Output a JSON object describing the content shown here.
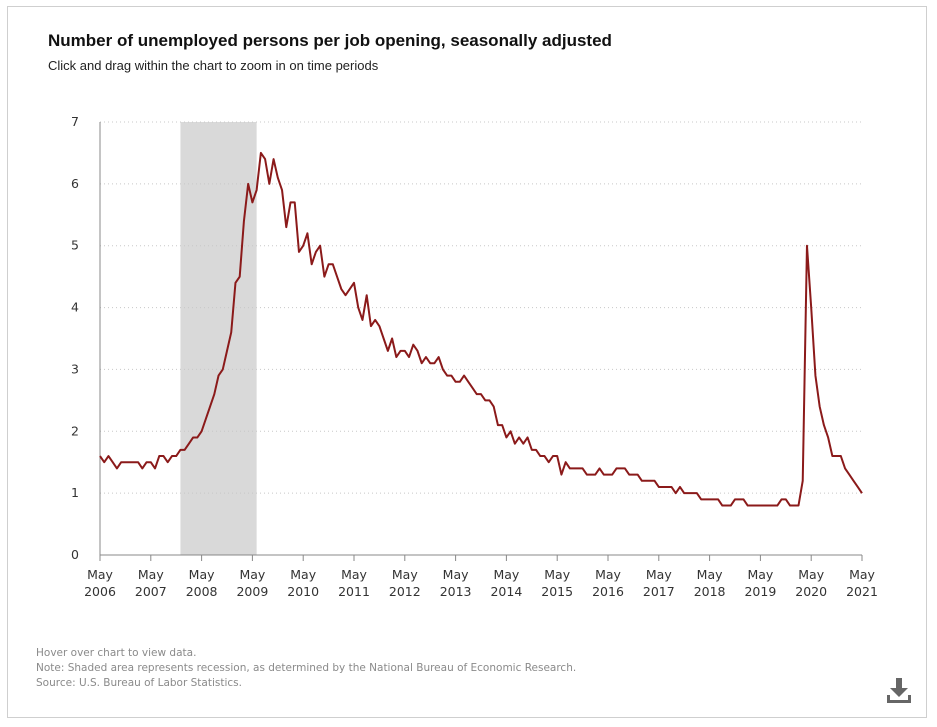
{
  "header": {
    "title": "Number of unemployed persons per job opening, seasonally adjusted",
    "subtitle": "Click and drag within the chart to zoom in on time periods"
  },
  "footer": {
    "hover_note": "Hover over chart to view data.",
    "note": "Note: Shaded area represents recession, as determined by the National Bureau of Economic Research.",
    "source": "Source: U.S. Bureau of Labor Statistics."
  },
  "toolbar": {
    "download_icon": "download-icon"
  },
  "colors": {
    "line": "#8b1a1a",
    "recession": "#d9d9d9",
    "grid": "#c8c8c8",
    "axis": "#888888"
  },
  "chart_data": {
    "type": "line",
    "title": "Number of unemployed persons per job opening, seasonally adjusted",
    "ylim": [
      0,
      7
    ],
    "yticks": [
      0,
      1,
      2,
      3,
      4,
      5,
      6,
      7
    ],
    "xlim": [
      "2006-05",
      "2021-05"
    ],
    "xticks": [
      {
        "date": "2006-05",
        "line1": "May",
        "line2": "2006"
      },
      {
        "date": "2007-05",
        "line1": "May",
        "line2": "2007"
      },
      {
        "date": "2008-05",
        "line1": "May",
        "line2": "2008"
      },
      {
        "date": "2009-05",
        "line1": "May",
        "line2": "2009"
      },
      {
        "date": "2010-05",
        "line1": "May",
        "line2": "2010"
      },
      {
        "date": "2011-05",
        "line1": "May",
        "line2": "2011"
      },
      {
        "date": "2012-05",
        "line1": "May",
        "line2": "2012"
      },
      {
        "date": "2013-05",
        "line1": "May",
        "line2": "2013"
      },
      {
        "date": "2014-05",
        "line1": "May",
        "line2": "2014"
      },
      {
        "date": "2015-05",
        "line1": "May",
        "line2": "2015"
      },
      {
        "date": "2016-05",
        "line1": "May",
        "line2": "2016"
      },
      {
        "date": "2017-05",
        "line1": "May",
        "line2": "2017"
      },
      {
        "date": "2018-05",
        "line1": "May",
        "line2": "2018"
      },
      {
        "date": "2019-05",
        "line1": "May",
        "line2": "2019"
      },
      {
        "date": "2020-05",
        "line1": "May",
        "line2": "2020"
      },
      {
        "date": "2021-05",
        "line1": "May",
        "line2": "2021"
      }
    ],
    "grid": "horizontal dotted",
    "recession": {
      "start": "2007-12",
      "end": "2009-06"
    },
    "series": [
      {
        "values": [
          {
            "x": "2006-05",
            "y": 1.6
          },
          {
            "x": "2006-06",
            "y": 1.5
          },
          {
            "x": "2006-07",
            "y": 1.6
          },
          {
            "x": "2006-08",
            "y": 1.5
          },
          {
            "x": "2006-09",
            "y": 1.4
          },
          {
            "x": "2006-10",
            "y": 1.5
          },
          {
            "x": "2006-11",
            "y": 1.5
          },
          {
            "x": "2006-12",
            "y": 1.5
          },
          {
            "x": "2007-01",
            "y": 1.5
          },
          {
            "x": "2007-02",
            "y": 1.5
          },
          {
            "x": "2007-03",
            "y": 1.4
          },
          {
            "x": "2007-04",
            "y": 1.5
          },
          {
            "x": "2007-05",
            "y": 1.5
          },
          {
            "x": "2007-06",
            "y": 1.4
          },
          {
            "x": "2007-07",
            "y": 1.6
          },
          {
            "x": "2007-08",
            "y": 1.6
          },
          {
            "x": "2007-09",
            "y": 1.5
          },
          {
            "x": "2007-10",
            "y": 1.6
          },
          {
            "x": "2007-11",
            "y": 1.6
          },
          {
            "x": "2007-12",
            "y": 1.7
          },
          {
            "x": "2008-01",
            "y": 1.7
          },
          {
            "x": "2008-02",
            "y": 1.8
          },
          {
            "x": "2008-03",
            "y": 1.9
          },
          {
            "x": "2008-04",
            "y": 1.9
          },
          {
            "x": "2008-05",
            "y": 2.0
          },
          {
            "x": "2008-06",
            "y": 2.2
          },
          {
            "x": "2008-07",
            "y": 2.4
          },
          {
            "x": "2008-08",
            "y": 2.6
          },
          {
            "x": "2008-09",
            "y": 2.9
          },
          {
            "x": "2008-10",
            "y": 3.0
          },
          {
            "x": "2008-11",
            "y": 3.3
          },
          {
            "x": "2008-12",
            "y": 3.6
          },
          {
            "x": "2009-01",
            "y": 4.4
          },
          {
            "x": "2009-02",
            "y": 4.5
          },
          {
            "x": "2009-03",
            "y": 5.4
          },
          {
            "x": "2009-04",
            "y": 6.0
          },
          {
            "x": "2009-05",
            "y": 5.7
          },
          {
            "x": "2009-06",
            "y": 5.9
          },
          {
            "x": "2009-07",
            "y": 6.5
          },
          {
            "x": "2009-08",
            "y": 6.4
          },
          {
            "x": "2009-09",
            "y": 6.0
          },
          {
            "x": "2009-10",
            "y": 6.4
          },
          {
            "x": "2009-11",
            "y": 6.1
          },
          {
            "x": "2009-12",
            "y": 5.9
          },
          {
            "x": "2010-01",
            "y": 5.3
          },
          {
            "x": "2010-02",
            "y": 5.7
          },
          {
            "x": "2010-03",
            "y": 5.7
          },
          {
            "x": "2010-04",
            "y": 4.9
          },
          {
            "x": "2010-05",
            "y": 5.0
          },
          {
            "x": "2010-06",
            "y": 5.2
          },
          {
            "x": "2010-07",
            "y": 4.7
          },
          {
            "x": "2010-08",
            "y": 4.9
          },
          {
            "x": "2010-09",
            "y": 5.0
          },
          {
            "x": "2010-10",
            "y": 4.5
          },
          {
            "x": "2010-11",
            "y": 4.7
          },
          {
            "x": "2010-12",
            "y": 4.7
          },
          {
            "x": "2011-01",
            "y": 4.5
          },
          {
            "x": "2011-02",
            "y": 4.3
          },
          {
            "x": "2011-03",
            "y": 4.2
          },
          {
            "x": "2011-04",
            "y": 4.3
          },
          {
            "x": "2011-05",
            "y": 4.4
          },
          {
            "x": "2011-06",
            "y": 4.0
          },
          {
            "x": "2011-07",
            "y": 3.8
          },
          {
            "x": "2011-08",
            "y": 4.2
          },
          {
            "x": "2011-09",
            "y": 3.7
          },
          {
            "x": "2011-10",
            "y": 3.8
          },
          {
            "x": "2011-11",
            "y": 3.7
          },
          {
            "x": "2011-12",
            "y": 3.5
          },
          {
            "x": "2012-01",
            "y": 3.3
          },
          {
            "x": "2012-02",
            "y": 3.5
          },
          {
            "x": "2012-03",
            "y": 3.2
          },
          {
            "x": "2012-04",
            "y": 3.3
          },
          {
            "x": "2012-05",
            "y": 3.3
          },
          {
            "x": "2012-06",
            "y": 3.2
          },
          {
            "x": "2012-07",
            "y": 3.4
          },
          {
            "x": "2012-08",
            "y": 3.3
          },
          {
            "x": "2012-09",
            "y": 3.1
          },
          {
            "x": "2012-10",
            "y": 3.2
          },
          {
            "x": "2012-11",
            "y": 3.1
          },
          {
            "x": "2012-12",
            "y": 3.1
          },
          {
            "x": "2013-01",
            "y": 3.2
          },
          {
            "x": "2013-02",
            "y": 3.0
          },
          {
            "x": "2013-03",
            "y": 2.9
          },
          {
            "x": "2013-04",
            "y": 2.9
          },
          {
            "x": "2013-05",
            "y": 2.8
          },
          {
            "x": "2013-06",
            "y": 2.8
          },
          {
            "x": "2013-07",
            "y": 2.9
          },
          {
            "x": "2013-08",
            "y": 2.8
          },
          {
            "x": "2013-09",
            "y": 2.7
          },
          {
            "x": "2013-10",
            "y": 2.6
          },
          {
            "x": "2013-11",
            "y": 2.6
          },
          {
            "x": "2013-12",
            "y": 2.5
          },
          {
            "x": "2014-01",
            "y": 2.5
          },
          {
            "x": "2014-02",
            "y": 2.4
          },
          {
            "x": "2014-03",
            "y": 2.1
          },
          {
            "x": "2014-04",
            "y": 2.1
          },
          {
            "x": "2014-05",
            "y": 1.9
          },
          {
            "x": "2014-06",
            "y": 2.0
          },
          {
            "x": "2014-07",
            "y": 1.8
          },
          {
            "x": "2014-08",
            "y": 1.9
          },
          {
            "x": "2014-09",
            "y": 1.8
          },
          {
            "x": "2014-10",
            "y": 1.9
          },
          {
            "x": "2014-11",
            "y": 1.7
          },
          {
            "x": "2014-12",
            "y": 1.7
          },
          {
            "x": "2015-01",
            "y": 1.6
          },
          {
            "x": "2015-02",
            "y": 1.6
          },
          {
            "x": "2015-03",
            "y": 1.5
          },
          {
            "x": "2015-04",
            "y": 1.6
          },
          {
            "x": "2015-05",
            "y": 1.6
          },
          {
            "x": "2015-06",
            "y": 1.3
          },
          {
            "x": "2015-07",
            "y": 1.5
          },
          {
            "x": "2015-08",
            "y": 1.4
          },
          {
            "x": "2015-09",
            "y": 1.4
          },
          {
            "x": "2015-10",
            "y": 1.4
          },
          {
            "x": "2015-11",
            "y": 1.4
          },
          {
            "x": "2015-12",
            "y": 1.3
          },
          {
            "x": "2016-01",
            "y": 1.3
          },
          {
            "x": "2016-02",
            "y": 1.3
          },
          {
            "x": "2016-03",
            "y": 1.4
          },
          {
            "x": "2016-04",
            "y": 1.3
          },
          {
            "x": "2016-05",
            "y": 1.3
          },
          {
            "x": "2016-06",
            "y": 1.3
          },
          {
            "x": "2016-07",
            "y": 1.4
          },
          {
            "x": "2016-08",
            "y": 1.4
          },
          {
            "x": "2016-09",
            "y": 1.4
          },
          {
            "x": "2016-10",
            "y": 1.3
          },
          {
            "x": "2016-11",
            "y": 1.3
          },
          {
            "x": "2016-12",
            "y": 1.3
          },
          {
            "x": "2017-01",
            "y": 1.2
          },
          {
            "x": "2017-02",
            "y": 1.2
          },
          {
            "x": "2017-03",
            "y": 1.2
          },
          {
            "x": "2017-04",
            "y": 1.2
          },
          {
            "x": "2017-05",
            "y": 1.1
          },
          {
            "x": "2017-06",
            "y": 1.1
          },
          {
            "x": "2017-07",
            "y": 1.1
          },
          {
            "x": "2017-08",
            "y": 1.1
          },
          {
            "x": "2017-09",
            "y": 1.0
          },
          {
            "x": "2017-10",
            "y": 1.1
          },
          {
            "x": "2017-11",
            "y": 1.0
          },
          {
            "x": "2017-12",
            "y": 1.0
          },
          {
            "x": "2018-01",
            "y": 1.0
          },
          {
            "x": "2018-02",
            "y": 1.0
          },
          {
            "x": "2018-03",
            "y": 0.9
          },
          {
            "x": "2018-04",
            "y": 0.9
          },
          {
            "x": "2018-05",
            "y": 0.9
          },
          {
            "x": "2018-06",
            "y": 0.9
          },
          {
            "x": "2018-07",
            "y": 0.9
          },
          {
            "x": "2018-08",
            "y": 0.8
          },
          {
            "x": "2018-09",
            "y": 0.8
          },
          {
            "x": "2018-10",
            "y": 0.8
          },
          {
            "x": "2018-11",
            "y": 0.9
          },
          {
            "x": "2018-12",
            "y": 0.9
          },
          {
            "x": "2019-01",
            "y": 0.9
          },
          {
            "x": "2019-02",
            "y": 0.8
          },
          {
            "x": "2019-03",
            "y": 0.8
          },
          {
            "x": "2019-04",
            "y": 0.8
          },
          {
            "x": "2019-05",
            "y": 0.8
          },
          {
            "x": "2019-06",
            "y": 0.8
          },
          {
            "x": "2019-07",
            "y": 0.8
          },
          {
            "x": "2019-08",
            "y": 0.8
          },
          {
            "x": "2019-09",
            "y": 0.8
          },
          {
            "x": "2019-10",
            "y": 0.9
          },
          {
            "x": "2019-11",
            "y": 0.9
          },
          {
            "x": "2019-12",
            "y": 0.8
          },
          {
            "x": "2020-01",
            "y": 0.8
          },
          {
            "x": "2020-02",
            "y": 0.8
          },
          {
            "x": "2020-03",
            "y": 1.2
          },
          {
            "x": "2020-04",
            "y": 5.0
          },
          {
            "x": "2020-05",
            "y": 4.0
          },
          {
            "x": "2020-06",
            "y": 2.9
          },
          {
            "x": "2020-07",
            "y": 2.4
          },
          {
            "x": "2020-08",
            "y": 2.1
          },
          {
            "x": "2020-09",
            "y": 1.9
          },
          {
            "x": "2020-10",
            "y": 1.6
          },
          {
            "x": "2020-11",
            "y": 1.6
          },
          {
            "x": "2020-12",
            "y": 1.6
          },
          {
            "x": "2021-01",
            "y": 1.4
          },
          {
            "x": "2021-02",
            "y": 1.3
          },
          {
            "x": "2021-03",
            "y": 1.2
          },
          {
            "x": "2021-04",
            "y": 1.1
          },
          {
            "x": "2021-05",
            "y": 1.0
          }
        ]
      }
    ]
  }
}
